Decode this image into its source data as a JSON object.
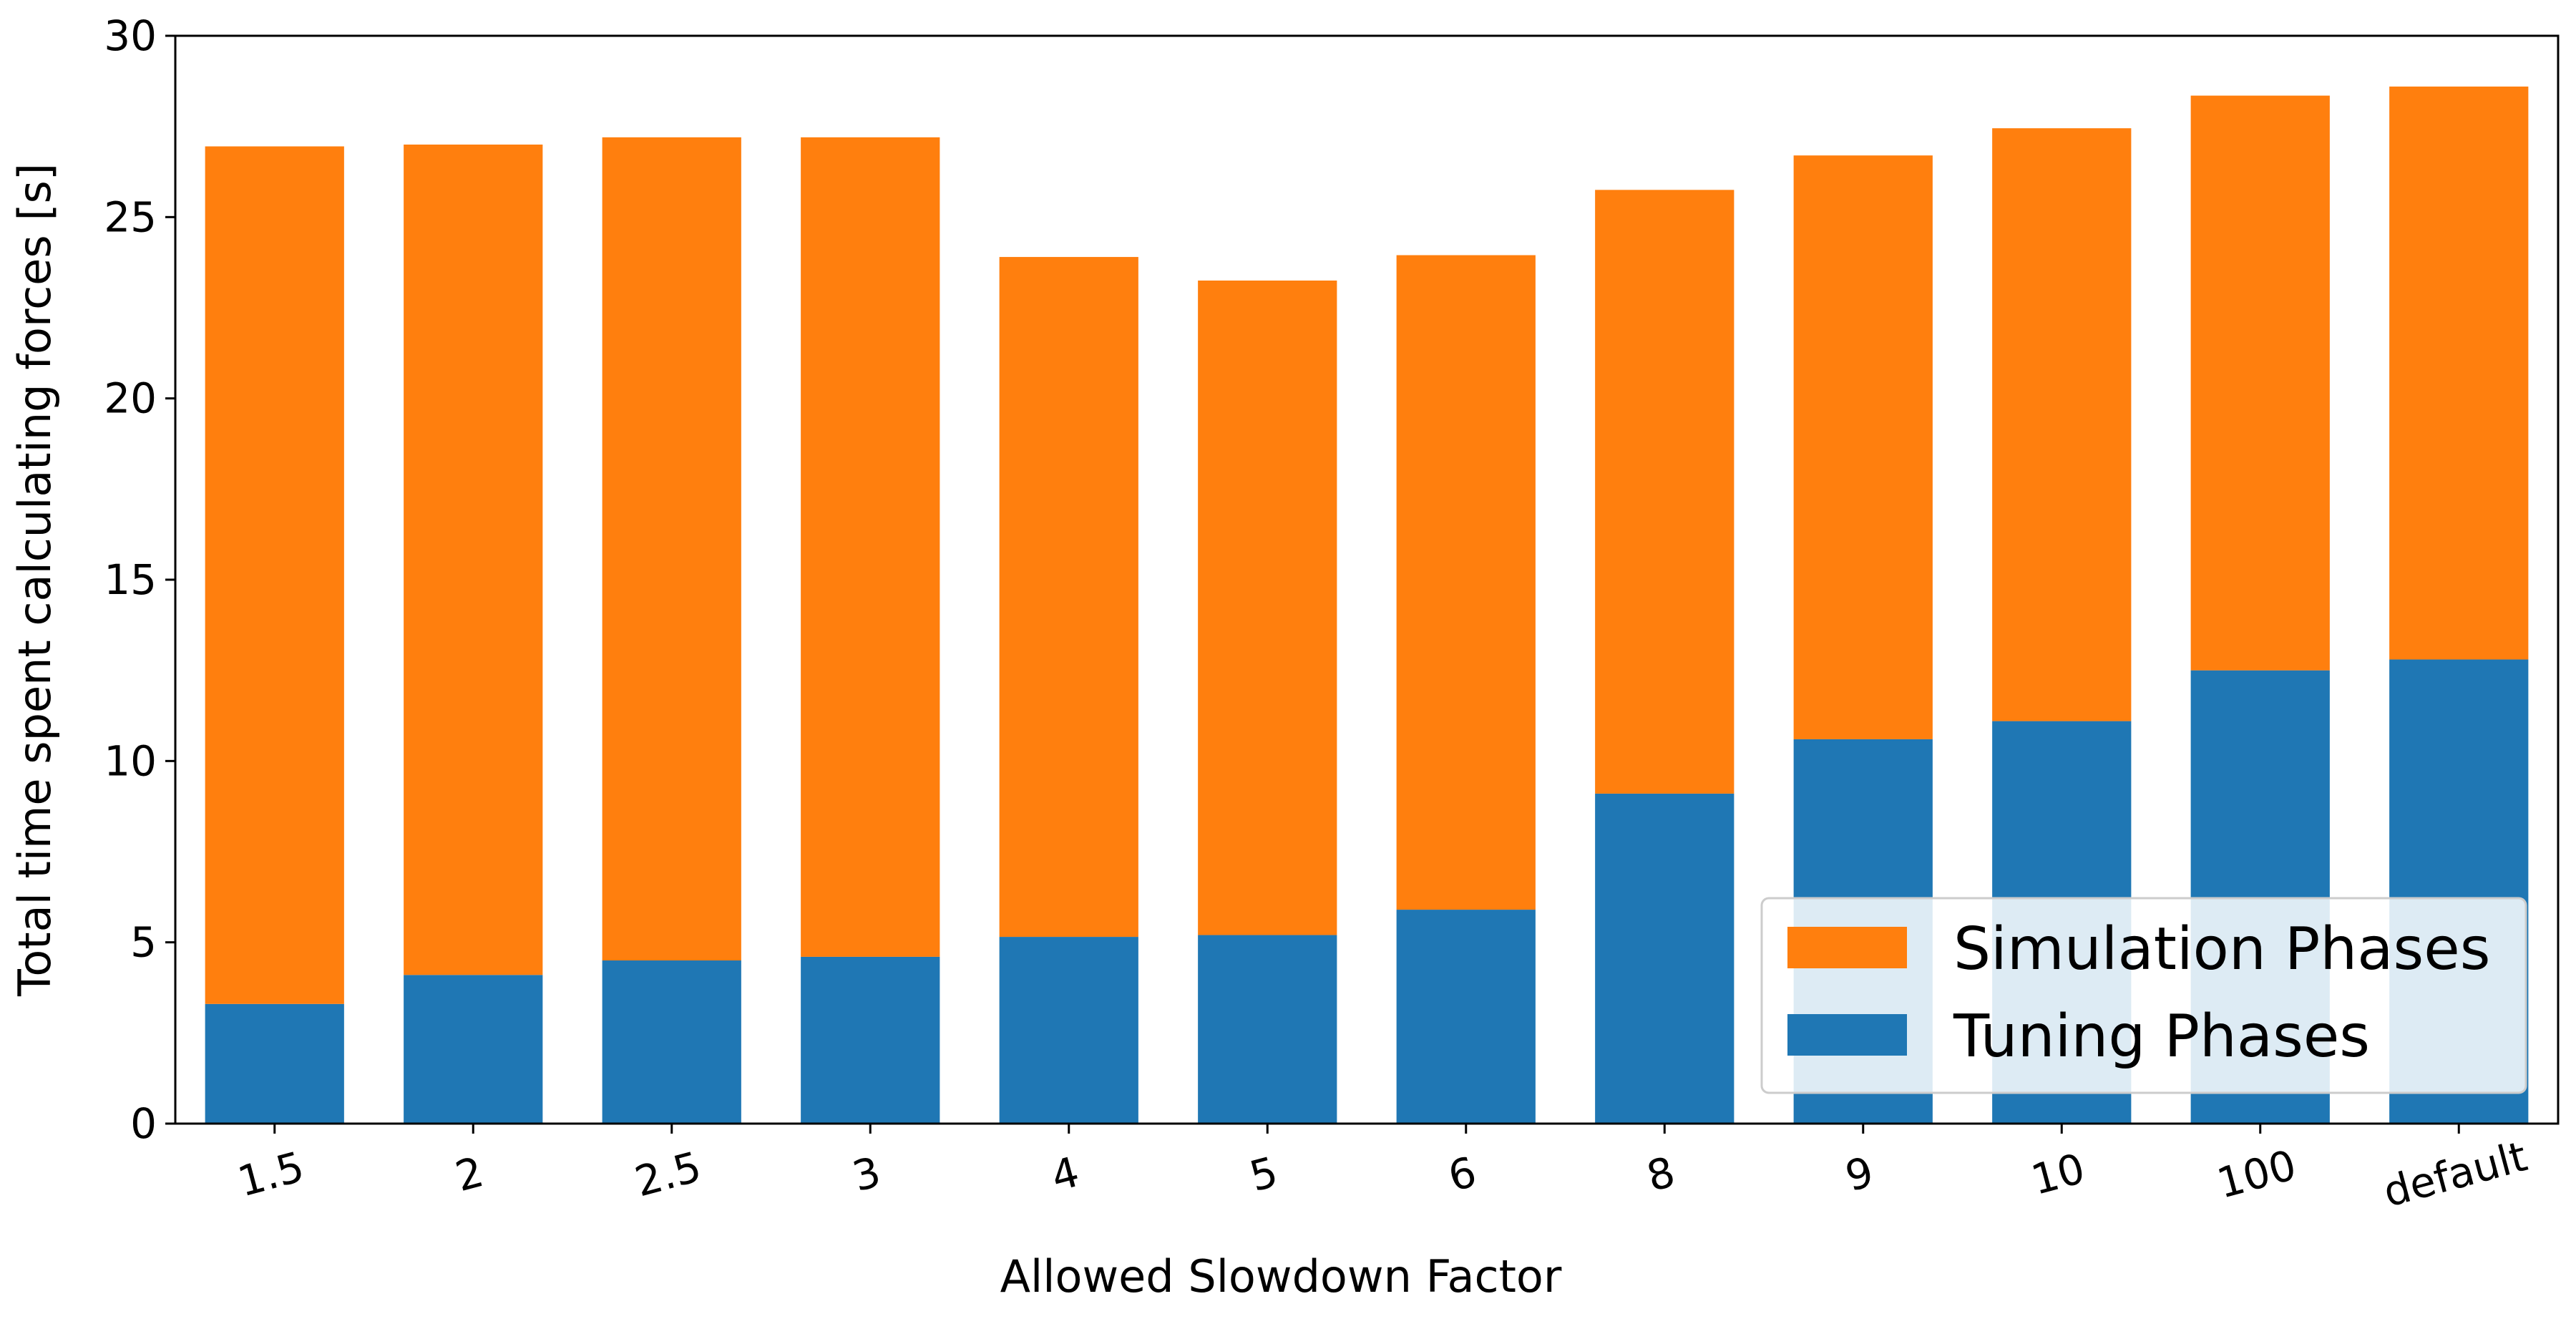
{
  "chart_data": {
    "type": "bar",
    "stacked": true,
    "categories": [
      "1.5",
      "2",
      "2.5",
      "3",
      "4",
      "5",
      "6",
      "8",
      "9",
      "10",
      "100",
      "default"
    ],
    "series": [
      {
        "name": "Tuning Phases",
        "color": "#1f77b4",
        "values": [
          3.3,
          4.1,
          4.5,
          4.6,
          5.15,
          5.2,
          5.9,
          9.1,
          10.6,
          11.1,
          12.5,
          12.8
        ]
      },
      {
        "name": "Simulation Phases",
        "color": "#ff7f0e",
        "values": [
          23.65,
          22.9,
          22.7,
          22.6,
          18.75,
          18.05,
          18.05,
          16.65,
          16.1,
          16.35,
          15.85,
          15.8
        ]
      }
    ],
    "xlabel": "Allowed Slowdown Factor",
    "ylabel": "Total time spent calculating forces [s]",
    "ylim": [
      0,
      30
    ],
    "yticks": [
      0,
      5,
      10,
      15,
      20,
      25,
      30
    ],
    "xtick_rotation": 15,
    "grid": false,
    "legend": {
      "position": "lower-right",
      "order": [
        "Simulation Phases",
        "Tuning Phases"
      ]
    }
  }
}
